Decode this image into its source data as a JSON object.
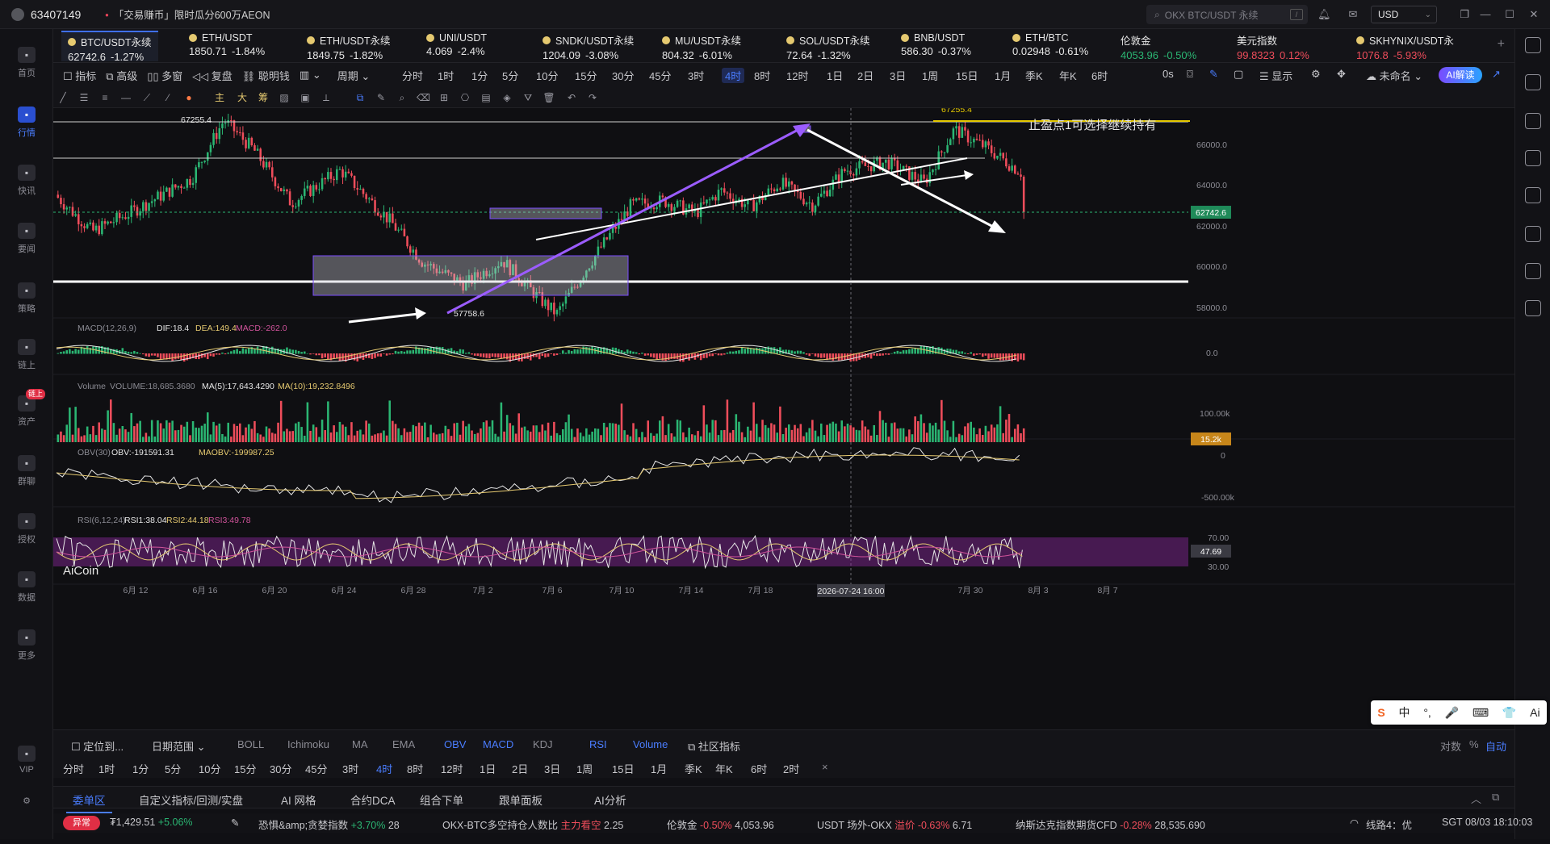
{
  "titlebar": {
    "account_id": "63407149",
    "promo": "「交易赚币」限时瓜分600万AEON",
    "search_placeholder": "OKX BTC/USDT 永续",
    "search_kbd": "/",
    "currency": "USD"
  },
  "tickers": [
    {
      "name": "BTC/USDT永续",
      "price": "62742.6",
      "change": "-1.27%",
      "dir": "down",
      "active": true
    },
    {
      "name": "ETH/USDT",
      "price": "1850.71",
      "change": "-1.84%",
      "dir": "down"
    },
    {
      "name": "ETH/USDT永续",
      "price": "1849.75",
      "change": "-1.82%",
      "dir": "down"
    },
    {
      "name": "UNI/USDT",
      "price": "4.069",
      "change": "-2.4%",
      "dir": "down"
    },
    {
      "name": "SNDK/USDT永续",
      "price": "1204.09",
      "change": "-3.08%",
      "dir": "down"
    },
    {
      "name": "MU/USDT永续",
      "price": "804.32",
      "change": "-6.01%",
      "dir": "down"
    },
    {
      "name": "SOL/USDT永续",
      "price": "72.64",
      "change": "-1.32%",
      "dir": "down"
    },
    {
      "name": "BNB/USDT",
      "price": "586.30",
      "change": "-0.37%",
      "dir": "down"
    },
    {
      "name": "ETH/BTC",
      "price": "0.02948",
      "change": "-0.61%",
      "dir": "down"
    },
    {
      "name": "伦敦金",
      "price": "4053.96",
      "change": "-0.50%",
      "dir": "up"
    },
    {
      "name": "美元指数",
      "price": "99.8323",
      "change": "0.12%",
      "dir": "down"
    },
    {
      "name": "SKHYNIX/USDT永",
      "price": "1076.8",
      "change": "-5.93%",
      "dir": "down"
    }
  ],
  "toolbar": {
    "indicator": "指标",
    "advanced": "高级",
    "multi_window": "多窗",
    "replay": "复盘",
    "smart_money": "聪明钱",
    "period_label": "周期",
    "periods": [
      "分时",
      "1时",
      "1分",
      "5分",
      "10分",
      "15分",
      "30分",
      "45分",
      "3时",
      "4时",
      "8时",
      "12时",
      "1日",
      "2日",
      "3日",
      "1周",
      "15日",
      "1月",
      "季K",
      "年K",
      "6时"
    ],
    "active_period": "4时",
    "countdown": "0s",
    "display": "显示",
    "unnamed": "未命名",
    "ai_read": "AI解读"
  },
  "chart": {
    "symbol": "BTC/USDT永续",
    "high_label": "67255.4",
    "low_label": "57758.6",
    "tp_label": "67255.4",
    "annotation": "止盈点1可选择继续持有",
    "current_price": "62742.6",
    "price_axis": [
      "68000.0",
      "66000.0",
      "64000.0",
      "62000.0",
      "60000.0",
      "58000.0"
    ],
    "macd_label": "MACD(12,26,9)",
    "macd_dif": "DIF:18.4",
    "macd_dea": "DEA:149.4",
    "macd_val": "MACD:-262.0",
    "macd_axis": "0.0",
    "vol_label": "Volume",
    "vol_val": "VOLUME:18,685.3680",
    "vol_ma5": "MA(5):17,643.4290",
    "vol_ma10": "MA(10):19,232.8496",
    "vol_axis_top": "100.00k",
    "vol_current": "15.2k",
    "obv_label": "OBV(30)",
    "obv_val": "OBV:-191591.31",
    "obv_ma": "MAOBV:-199987.25",
    "obv_axis_top": "0",
    "obv_axis_bottom": "-500.00k",
    "rsi_label": "RSI(6,12,24)",
    "rsi1": "RSI1:38.04",
    "rsi2": "RSI2:44.18",
    "rsi3": "RSI3:49.78",
    "rsi_axis_top": "70.00",
    "rsi_axis_bottom": "30.00",
    "rsi_current": "47.69",
    "watermark": "AiCoin",
    "date_axis": [
      "6月 12",
      "6月 16",
      "6月 20",
      "6月 24",
      "6月 28",
      "7月 2",
      "7月 6",
      "7月 10",
      "7月 14",
      "7月 18",
      "7月 22",
      "7月 30",
      "8月 3",
      "8月 7"
    ],
    "crosshair_date": "2026-07-24 16:00",
    "axis_mode": "对数",
    "axis_pct": "%",
    "axis_auto": "自动"
  },
  "bottom": {
    "locate": "定位到...",
    "date_range": "日期范围",
    "indicators": [
      "BOLL",
      "Ichimoku",
      "MA",
      "EMA",
      "OBV",
      "MACD",
      "KDJ",
      "RSI",
      "Volume"
    ],
    "active_indicators": [
      "OBV",
      "MACD",
      "RSI",
      "Volume"
    ],
    "community": "社区指标",
    "periods": [
      "分时",
      "1时",
      "1分",
      "5分",
      "10分",
      "15分",
      "30分",
      "45分",
      "3时",
      "4时",
      "8时",
      "12时",
      "1日",
      "2日",
      "3日",
      "1周",
      "15日",
      "1月",
      "季K",
      "年K",
      "6时",
      "2时"
    ],
    "active_period": "4时"
  },
  "tabs": [
    {
      "label": "委单区",
      "active": true
    },
    {
      "label": "自定义指标/回测/实盘"
    },
    {
      "label": "AI 网格"
    },
    {
      "label": "合约DCA"
    },
    {
      "label": "组合下单"
    },
    {
      "label": "跟单面板"
    },
    {
      "label": "AI分析"
    }
  ],
  "status": {
    "badge": "异常",
    "value1": "₮1,429.51",
    "value1_change": "+5.06%",
    "fear_greed": "恐惧&amp;贪婪指数",
    "fear_greed_change": "+3.70%",
    "fear_greed_val": "28",
    "okx_ratio": "OKX-BTC多空持仓人数比",
    "okx_ratio_tag": "主力看空",
    "okx_ratio_val": "2.25",
    "gold": "伦敦金",
    "gold_change": "-0.50%",
    "gold_val": "4,053.96",
    "usdt": "USDT 场外-OKX",
    "usdt_tag": "溢价",
    "usdt_change": "-0.63%",
    "usdt_val": "6.71",
    "nasdaq": "纳斯达克指数期货CFD",
    "nasdaq_change": "-0.28%",
    "nasdaq_val": "28,535.690",
    "line": "线路4：优",
    "time": "SGT 08/03 18:10:03"
  },
  "nav": [
    {
      "label": "首页",
      "icon": "home-icon"
    },
    {
      "label": "行情",
      "icon": "market-icon",
      "active": true
    },
    {
      "label": "快讯",
      "icon": "news-icon"
    },
    {
      "label": "要闻",
      "icon": "headline-icon"
    },
    {
      "label": "策略",
      "icon": "strategy-icon"
    },
    {
      "label": "链上",
      "icon": "chain-icon"
    },
    {
      "label": "资产",
      "icon": "wallet-icon",
      "badge": "链上"
    },
    {
      "label": "群聊",
      "icon": "chat-icon"
    },
    {
      "label": "授权",
      "icon": "auth-icon"
    },
    {
      "label": "数据",
      "icon": "data-icon"
    },
    {
      "label": "更多",
      "icon": "more-icon"
    },
    {
      "label": "VIP",
      "icon": "vip-icon"
    }
  ],
  "ime": [
    "中",
    "°,",
    "🎤",
    "⌨",
    "👕",
    "Ai"
  ],
  "colors": {
    "up": "#2bb673",
    "down": "#ef4d5b",
    "accent": "#4a7dff",
    "annotation_arrow": "#9b5cff"
  }
}
